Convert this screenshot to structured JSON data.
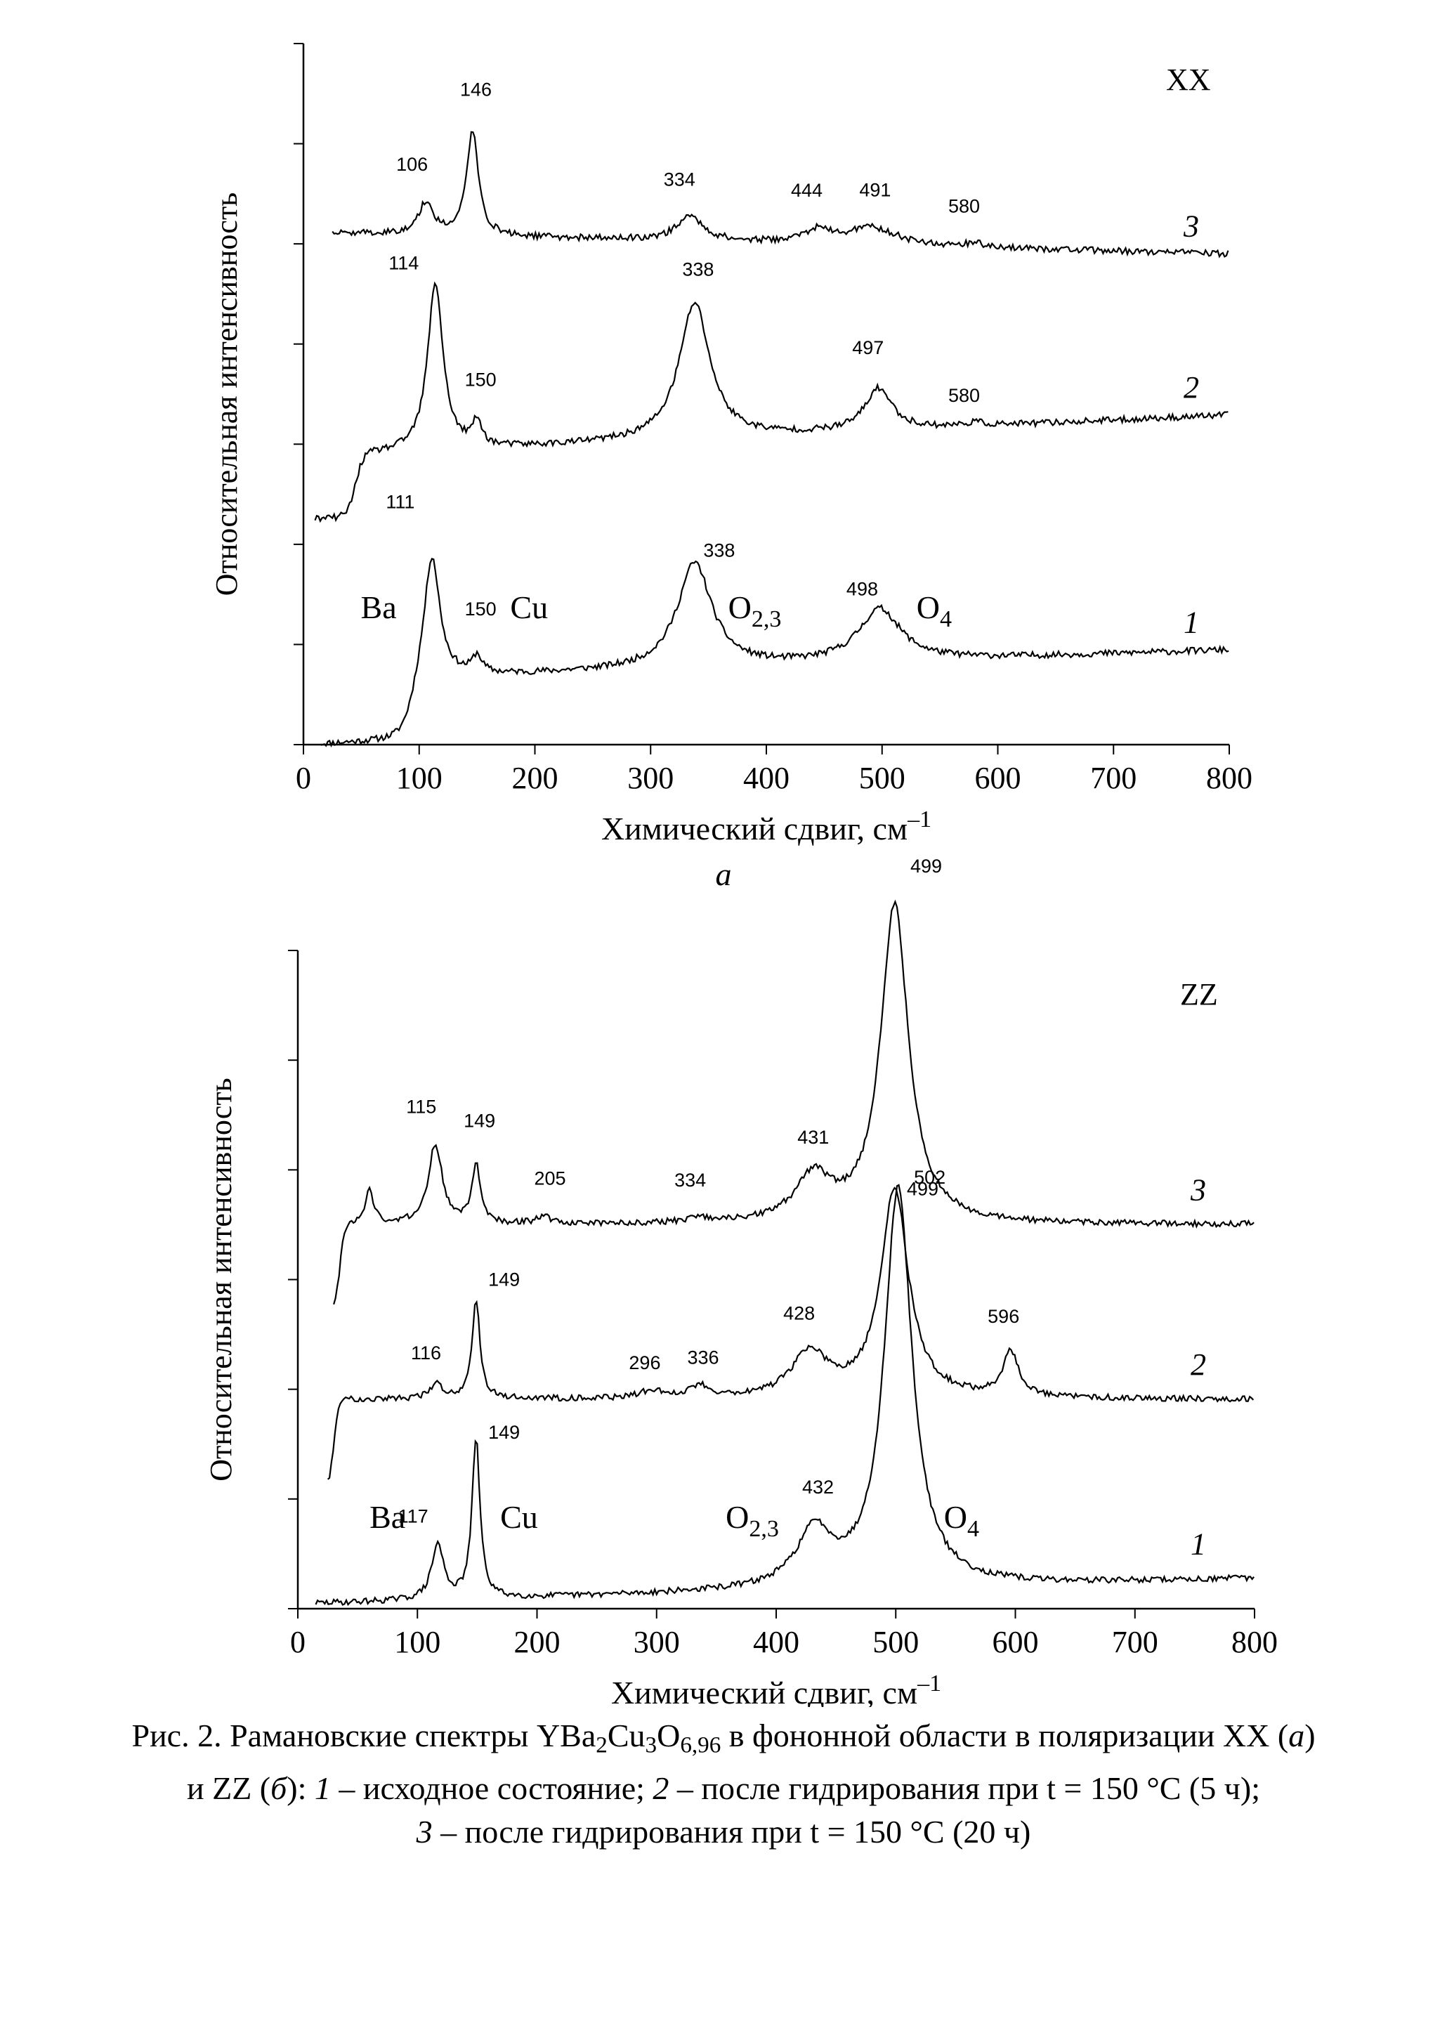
{
  "chart_data": [
    {
      "type": "line",
      "panel_label": "а",
      "polarization": "XX",
      "xlabel": "Химический сдвиг, см",
      "xlabel_superscript": "–1",
      "ylabel": "Относительная интенсивность",
      "xlim": [
        0,
        800
      ],
      "xticks": [
        0,
        100,
        200,
        300,
        400,
        500,
        600,
        700,
        800
      ],
      "yticks_labeled": false,
      "grid": false,
      "mode_labels": [
        {
          "text": "Ba",
          "x": 65
        },
        {
          "text": "Cu",
          "x": 195
        },
        {
          "text": "O",
          "sub": "2,3",
          "x": 390
        },
        {
          "text": "O",
          "sub": "4",
          "x": 545
        }
      ],
      "series": [
        {
          "name": "1",
          "offset": 0.8,
          "start": 15,
          "end": 800,
          "base_start": 0.1,
          "base_end": 0.55,
          "edge": {
            "x": 95,
            "width": 14
          },
          "peaks": [
            {
              "x": 111,
              "h": 1.75,
              "w": 8,
              "label": "111",
              "label_dx": -45,
              "label_dy": -50
            },
            {
              "x": 150,
              "h": 0.25,
              "w": 5,
              "label": "150",
              "label_dx": 5,
              "label_dy": -35
            },
            {
              "x": 338,
              "h": 1.5,
              "w": 18,
              "label": "338",
              "label_dx": 35,
              "label_dy": 10
            },
            {
              "x": 498,
              "h": 0.75,
              "w": 22,
              "label": "498",
              "label_dx": -25,
              "label_dy": 0
            }
          ]
        },
        {
          "name": "2",
          "offset": 4.0,
          "start": 10,
          "end": 800,
          "base_start": 0.1,
          "base_end": 0.7,
          "edge": {
            "x": 45,
            "width": 10
          },
          "peaks": [
            {
              "x": 114,
              "h": 2.4,
              "w": 8,
              "label": "114",
              "label_dx": -45,
              "label_dy": 0
            },
            {
              "x": 150,
              "h": 0.35,
              "w": 5,
              "label": "150",
              "label_dx": 5,
              "label_dy": -25
            },
            {
              "x": 338,
              "h": 1.95,
              "w": 16,
              "label": "338",
              "label_dx": 5,
              "label_dy": -20
            },
            {
              "x": 497,
              "h": 0.6,
              "w": 14,
              "label": "497",
              "label_dx": -15,
              "label_dy": -30
            },
            {
              "x": 580,
              "h": 0.05,
              "w": 10,
              "label": "580",
              "label_dx": -15,
              "label_dy": -10
            }
          ]
        },
        {
          "name": "3",
          "offset": 6.8,
          "start": 25,
          "end": 800,
          "base_start": 0.5,
          "base_end": 0.2,
          "peaks": [
            {
              "x": 106,
              "h": 0.45,
              "w": 8,
              "label": "106",
              "label_dx": -20,
              "label_dy": -25
            },
            {
              "x": 146,
              "h": 1.5,
              "w": 6,
              "label": "146",
              "label_dx": 5,
              "label_dy": -30
            },
            {
              "x": 334,
              "h": 0.35,
              "w": 14,
              "label": "334",
              "label_dx": -15,
              "label_dy": -25
            },
            {
              "x": 444,
              "h": 0.18,
              "w": 14,
              "label": "444",
              "label_dx": -15,
              "label_dy": -25
            },
            {
              "x": 491,
              "h": 0.25,
              "w": 26,
              "label": "491",
              "label_dx": 5,
              "label_dy": -25
            },
            {
              "x": 580,
              "h": 0.05,
              "w": 12,
              "label": "580",
              "label_dx": -15,
              "label_dy": -25
            }
          ]
        }
      ]
    },
    {
      "type": "line",
      "panel_label": "б",
      "polarization": "ZZ",
      "xlabel": "Химический сдвиг, см",
      "xlabel_superscript": "–1",
      "ylabel": "Относительная интенсивность",
      "xlim": [
        0,
        800
      ],
      "xticks": [
        0,
        100,
        200,
        300,
        400,
        500,
        600,
        700,
        800
      ],
      "yticks_labeled": false,
      "grid": false,
      "mode_labels": [
        {
          "text": "Ba",
          "x": 75
        },
        {
          "text": "Cu",
          "x": 185
        },
        {
          "text": "O",
          "sub": "2,3",
          "x": 380
        },
        {
          "text": "O",
          "sub": "4",
          "x": 555
        }
      ],
      "series": [
        {
          "name": "1",
          "offset": 0.05,
          "start": 15,
          "end": 800,
          "base_start": 0.0,
          "base_end": 0.25,
          "peaks": [
            {
              "x": 117,
              "h": 0.55,
              "w": 6,
              "label": "117",
              "label_dx": -35,
              "label_dy": -10
            },
            {
              "x": 149,
              "h": 1.6,
              "w": 4,
              "label": "149",
              "label_dx": 40,
              "label_dy": 20
            },
            {
              "x": 432,
              "h": 0.55,
              "w": 18,
              "label": "432",
              "label_dx": 5,
              "label_dy": -20
            },
            {
              "x": 502,
              "h": 4.0,
              "w": 14,
              "label": "502",
              "label_dx": 45,
              "label_dy": 15
            }
          ]
        },
        {
          "name": "2",
          "offset": 2.0,
          "start": 25,
          "end": 800,
          "base_start": 0.1,
          "base_end": 0.1,
          "edge": {
            "x": 30,
            "width": 6
          },
          "peaks": [
            {
              "x": 116,
              "h": 0.15,
              "w": 6,
              "label": "116",
              "label_dx": -15,
              "label_dy": -15
            },
            {
              "x": 149,
              "h": 1.0,
              "w": 4,
              "label": "149",
              "label_dx": 40,
              "label_dy": 0
            },
            {
              "x": 296,
              "h": 0.08,
              "w": 10,
              "label": "296",
              "label_dx": -10,
              "label_dy": -10
            },
            {
              "x": 336,
              "h": 0.12,
              "w": 10,
              "label": "336",
              "label_dx": 5,
              "label_dy": -10
            },
            {
              "x": 428,
              "h": 0.45,
              "w": 18,
              "label": "428",
              "label_dx": -15,
              "label_dy": -20
            },
            {
              "x": 499,
              "h": 2.1,
              "w": 14,
              "label": "499",
              "label_dx": 40,
              "label_dy": 30
            },
            {
              "x": 596,
              "h": 0.45,
              "w": 8,
              "label": "596",
              "label_dx": -10,
              "label_dy": -20
            }
          ]
        },
        {
          "name": "3",
          "offset": 3.75,
          "start": 30,
          "end": 800,
          "base_start": 0.1,
          "base_end": 0.1,
          "edge": {
            "x": 35,
            "width": 6
          },
          "peaks": [
            {
              "x": 60,
              "h": 0.35,
              "w": 4
            },
            {
              "x": 115,
              "h": 0.8,
              "w": 7,
              "label": "115",
              "label_dx": -20,
              "label_dy": -25
            },
            {
              "x": 149,
              "h": 0.6,
              "w": 4,
              "label": "149",
              "label_dx": 5,
              "label_dy": -30
            },
            {
              "x": 205,
              "h": 0.08,
              "w": 6,
              "label": "205",
              "label_dx": 10,
              "label_dy": -25
            },
            {
              "x": 334,
              "h": 0.04,
              "w": 12,
              "label": "334",
              "label_dx": -10,
              "label_dy": -25
            },
            {
              "x": 431,
              "h": 0.45,
              "w": 18,
              "label": "431",
              "label_dx": 0,
              "label_dy": -15
            },
            {
              "x": 499,
              "h": 3.2,
              "w": 14,
              "label": "499",
              "label_dx": 45,
              "label_dy": -25
            }
          ]
        }
      ]
    }
  ],
  "caption": {
    "line1_prefix": "Рис. 2. Рамановские спектры YBa",
    "line1_sub1": "2",
    "line1_mid1": "Cu",
    "line1_sub2": "3",
    "line1_mid2": "O",
    "line1_sub3": "6,96",
    "line1_suffix": " в фононной области в поляризации XX (",
    "line1_italic_a": "а",
    "line1_end": ")",
    "line2_prefix": "и ZZ (",
    "line2_italic_b": "б",
    "line2_mid": "): ",
    "line2_n1": "1",
    "line2_t1": " – исходное состояние; ",
    "line2_n2": "2",
    "line2_t2": " – после гидрирования при t = 150 °C (5 ч);",
    "line3_n3": "3",
    "line3_t3": " – после гидрирования при t = 150 °C (20 ч)"
  }
}
